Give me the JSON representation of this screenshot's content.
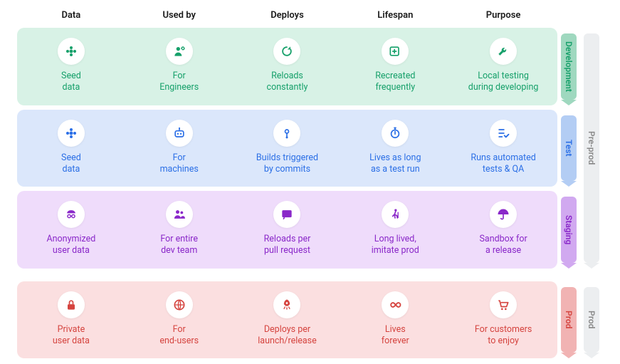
{
  "columns": [
    "Data",
    "Used by",
    "Deploys",
    "Lifespan",
    "Purpose"
  ],
  "stages": {
    "preprod": {
      "label": "Pre-prod",
      "bg": "#eceef0",
      "text": "#888888"
    },
    "prod": {
      "label": "Prod",
      "bg": "#eceef0",
      "text": "#888888"
    }
  },
  "environments": [
    {
      "id": "development",
      "label": "Development",
      "row_bg": "#d8f2e6",
      "text_color": "#16a06a",
      "tag_bg": "#9fd8bf",
      "stage": "preprod",
      "cells": [
        {
          "icon": "flower",
          "label": "Seed\ndata"
        },
        {
          "icon": "user-gear",
          "label": "For\nEngineers"
        },
        {
          "icon": "refresh",
          "label": "Reloads\nconstantly"
        },
        {
          "icon": "recreate",
          "label": "Recreated\nfrequently"
        },
        {
          "icon": "wrench",
          "label": "Local testing\nduring developing"
        }
      ]
    },
    {
      "id": "test",
      "label": "Test",
      "row_bg": "#dbe7fb",
      "text_color": "#2b6fe6",
      "tag_bg": "#b3cdf4",
      "stage": "preprod",
      "cells": [
        {
          "icon": "flower",
          "label": "Seed\ndata"
        },
        {
          "icon": "robot",
          "label": "For\nmachines"
        },
        {
          "icon": "ci",
          "label": "Builds triggered\nby commits"
        },
        {
          "icon": "stopwatch",
          "label": "Lives as long\nas a test run"
        },
        {
          "icon": "checklist",
          "label": "Runs automated\ntests & QA"
        }
      ]
    },
    {
      "id": "staging",
      "label": "Staging",
      "row_bg": "#efdcfb",
      "text_color": "#8a28c9",
      "tag_bg": "#d1a9f0",
      "stage": "preprod",
      "cells": [
        {
          "icon": "anon",
          "label": "Anonymized\nuser data"
        },
        {
          "icon": "team",
          "label": "For entire\ndev team"
        },
        {
          "icon": "pr",
          "label": "Reloads per\npull request"
        },
        {
          "icon": "walker",
          "label": "Long lived,\nimitate prod"
        },
        {
          "icon": "umbrella",
          "label": "Sandbox for\na release"
        }
      ]
    },
    {
      "id": "prod",
      "label": "Prod",
      "row_bg": "#fbdfe0",
      "text_color": "#d5443f",
      "tag_bg": "#f1b3b3",
      "stage": "prod",
      "cells": [
        {
          "icon": "lock",
          "label": "Private\nuser data"
        },
        {
          "icon": "globe",
          "label": "For\nend-users"
        },
        {
          "icon": "rocket",
          "label": "Deploys per\nlaunch/release"
        },
        {
          "icon": "infinity",
          "label": "Lives\nforever"
        },
        {
          "icon": "cart",
          "label": "For customers\nto enjoy"
        }
      ]
    }
  ],
  "icon_circle_bg": "#ffffff"
}
